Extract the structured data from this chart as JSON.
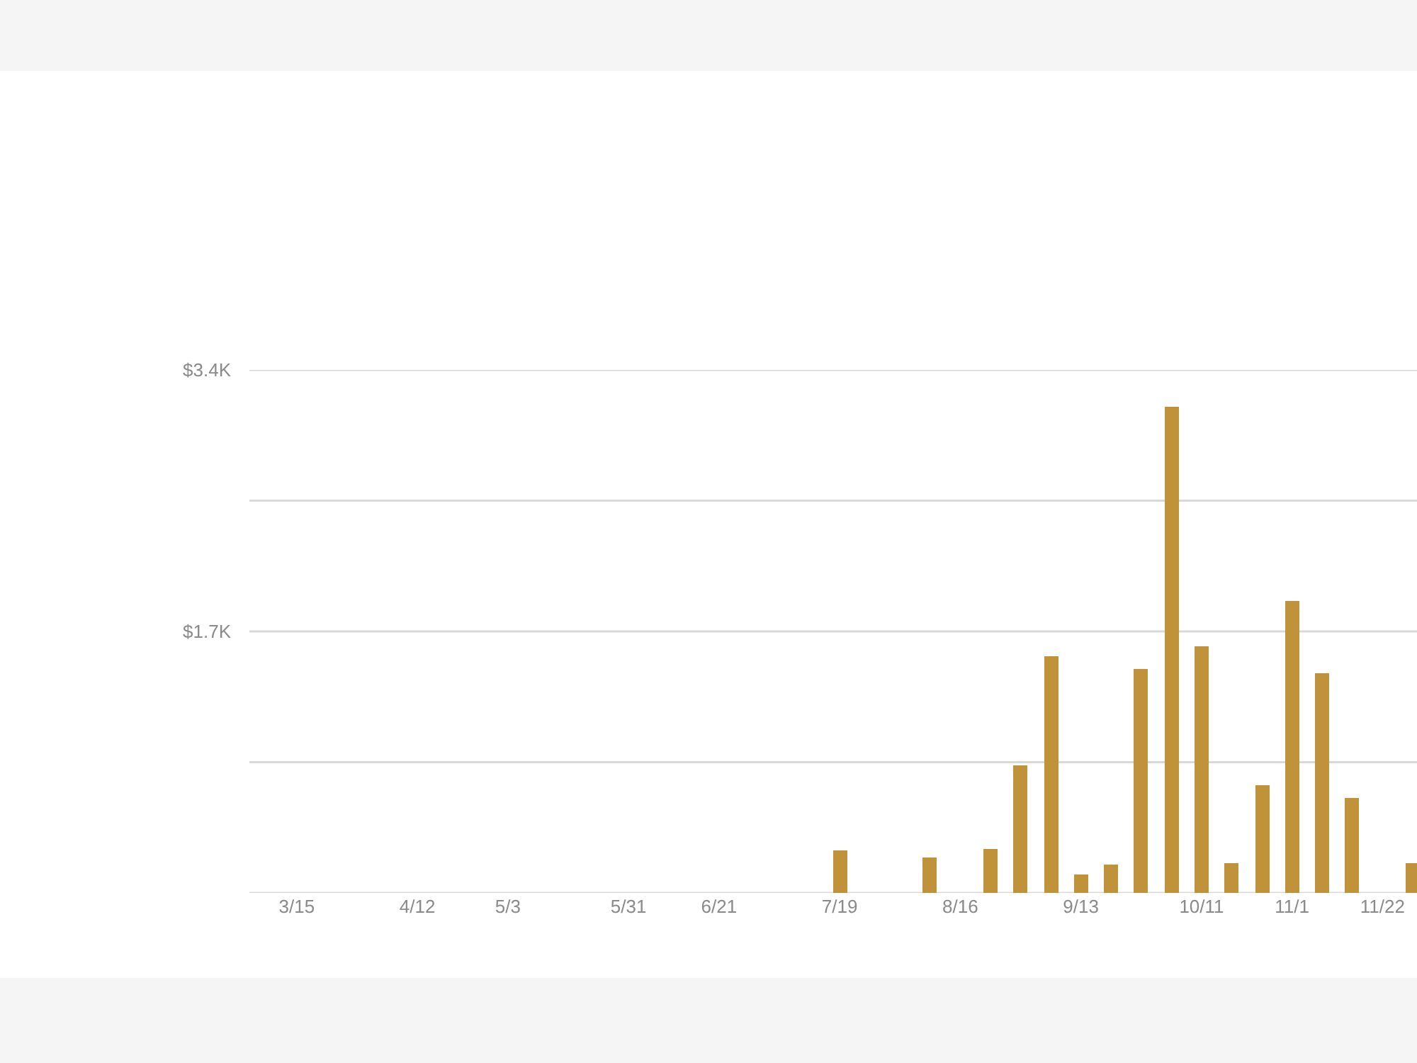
{
  "chart_data": {
    "type": "bar",
    "x": [
      "--07-19",
      "--08-09",
      "--08-23",
      "--08-30",
      "--09-06",
      "--09-13",
      "--09-20",
      "--09-27",
      "--10-04",
      "--10-11",
      "--10-18",
      "--10-25",
      "--11-01",
      "--11-08",
      "--11-15",
      "--11-29"
    ],
    "values": [
      280,
      230,
      290,
      830,
      1540,
      120,
      180,
      1460,
      3160,
      1600,
      190,
      700,
      1900,
      1430,
      620,
      190
    ],
    "color": "#c0923a",
    "xlim": [
      "--03-04",
      "--11-30"
    ],
    "xticks": [
      {
        "value": "--03-15",
        "label": "3/15"
      },
      {
        "value": "--04-12",
        "label": "4/12"
      },
      {
        "value": "--05-03",
        "label": "5/3"
      },
      {
        "value": "--05-31",
        "label": "5/31"
      },
      {
        "value": "--06-21",
        "label": "6/21"
      },
      {
        "value": "--07-19",
        "label": "7/19"
      },
      {
        "value": "--08-16",
        "label": "8/16"
      },
      {
        "value": "--09-13",
        "label": "9/13"
      },
      {
        "value": "--10-11",
        "label": "10/11"
      },
      {
        "value": "--11-01",
        "label": "11/1"
      },
      {
        "value": "--11-22",
        "label": "11/22"
      }
    ],
    "ylim": [
      0,
      3400
    ],
    "yticks": [
      {
        "value": 0,
        "label": null
      },
      {
        "value": 850,
        "label": null
      },
      {
        "value": 1700,
        "label": "$1.7K"
      },
      {
        "value": 2550,
        "label": null
      },
      {
        "value": 3400,
        "label": "$3.4K"
      }
    ],
    "grid": "y"
  }
}
